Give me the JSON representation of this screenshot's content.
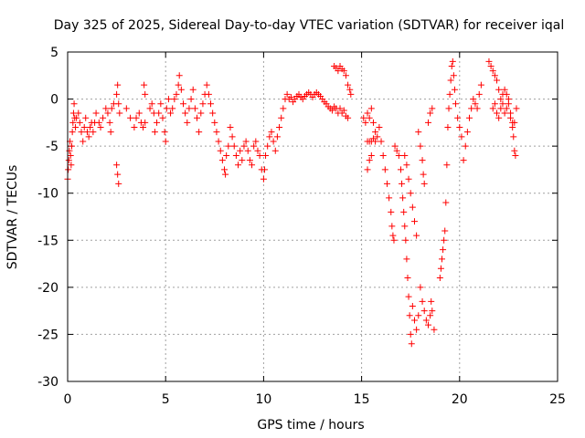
{
  "chart_data": {
    "type": "scatter",
    "title": "Day 325 of 2025, Sidereal Day-to-day VTEC variation (SDTVAR) for receiver iqal",
    "xlabel": "GPS time / hours",
    "ylabel": "SDTVAR / TECUs",
    "xlim": [
      0,
      25
    ],
    "ylim": [
      -30,
      5
    ],
    "xticks": [
      "0",
      "5",
      "10",
      "15",
      "20",
      "25"
    ],
    "yticks": [
      "5",
      "0",
      "-5",
      "-10",
      "-15",
      "-20",
      "-25",
      "-30"
    ],
    "grid": true,
    "marker": "+",
    "color": "#ff0000",
    "series": [
      {
        "name": "SDTVAR",
        "points": [
          [
            0.0,
            -8.5
          ],
          [
            0.03,
            -7.5
          ],
          [
            0.06,
            -6.5
          ],
          [
            0.09,
            -5.5
          ],
          [
            0.12,
            -4.5
          ],
          [
            0.15,
            -6.0
          ],
          [
            0.18,
            -7.0
          ],
          [
            0.21,
            -5.0
          ],
          [
            0.24,
            -3.5
          ],
          [
            0.27,
            -2.5
          ],
          [
            0.3,
            -1.5
          ],
          [
            0.33,
            -0.5
          ],
          [
            0.36,
            -2.0
          ],
          [
            0.4,
            -3.0
          ],
          [
            0.45,
            -2.0
          ],
          [
            0.55,
            -1.5
          ],
          [
            0.62,
            -2.5
          ],
          [
            0.7,
            -3.5
          ],
          [
            0.78,
            -4.5
          ],
          [
            0.85,
            -3.0
          ],
          [
            0.92,
            -2.0
          ],
          [
            1.0,
            -3.5
          ],
          [
            1.08,
            -4.0
          ],
          [
            1.15,
            -3.0
          ],
          [
            1.22,
            -2.5
          ],
          [
            1.3,
            -3.5
          ],
          [
            1.38,
            -2.5
          ],
          [
            1.45,
            -1.5
          ],
          [
            1.6,
            -2.5
          ],
          [
            1.68,
            -3.0
          ],
          [
            1.8,
            -2.0
          ],
          [
            1.95,
            -1.0
          ],
          [
            2.05,
            -1.5
          ],
          [
            2.15,
            -2.5
          ],
          [
            2.2,
            -3.5
          ],
          [
            2.25,
            -1.0
          ],
          [
            2.35,
            -0.5
          ],
          [
            2.5,
            0.5
          ],
          [
            2.55,
            1.5
          ],
          [
            2.6,
            -0.5
          ],
          [
            2.65,
            -1.5
          ],
          [
            2.5,
            -7.0
          ],
          [
            2.55,
            -8.0
          ],
          [
            2.6,
            -9.0
          ],
          [
            3.0,
            -1.0
          ],
          [
            3.2,
            -2.0
          ],
          [
            3.4,
            -3.0
          ],
          [
            3.5,
            -2.0
          ],
          [
            3.65,
            -1.5
          ],
          [
            3.75,
            -2.5
          ],
          [
            3.85,
            -3.0
          ],
          [
            3.95,
            -2.5
          ],
          [
            3.9,
            1.5
          ],
          [
            3.95,
            0.5
          ],
          [
            4.2,
            -1.0
          ],
          [
            4.3,
            -0.5
          ],
          [
            4.4,
            -1.5
          ],
          [
            4.45,
            -3.5
          ],
          [
            4.55,
            -2.5
          ],
          [
            4.65,
            -1.5
          ],
          [
            4.75,
            -0.5
          ],
          [
            4.85,
            -2.0
          ],
          [
            4.95,
            -3.5
          ],
          [
            5.0,
            -4.5
          ],
          [
            5.05,
            -1.0
          ],
          [
            5.15,
            0.0
          ],
          [
            5.25,
            -1.5
          ],
          [
            5.35,
            -1.0
          ],
          [
            5.45,
            0.0
          ],
          [
            5.55,
            0.5
          ],
          [
            5.65,
            1.5
          ],
          [
            5.7,
            2.5
          ],
          [
            5.8,
            1.0
          ],
          [
            5.9,
            -0.5
          ],
          [
            6.0,
            -1.5
          ],
          [
            6.1,
            -2.5
          ],
          [
            6.2,
            -1.0
          ],
          [
            6.3,
            0.0
          ],
          [
            6.4,
            1.0
          ],
          [
            6.5,
            -1.0
          ],
          [
            6.6,
            -2.0
          ],
          [
            6.7,
            -3.5
          ],
          [
            6.8,
            -1.5
          ],
          [
            6.9,
            -0.5
          ],
          [
            7.0,
            0.5
          ],
          [
            7.1,
            1.5
          ],
          [
            7.2,
            0.5
          ],
          [
            7.3,
            -0.5
          ],
          [
            7.4,
            -1.5
          ],
          [
            7.5,
            -2.5
          ],
          [
            7.6,
            -3.5
          ],
          [
            7.7,
            -4.5
          ],
          [
            7.8,
            -5.5
          ],
          [
            7.9,
            -6.5
          ],
          [
            8.0,
            -7.5
          ],
          [
            8.05,
            -8.0
          ],
          [
            8.1,
            -6.0
          ],
          [
            8.2,
            -5.0
          ],
          [
            8.3,
            -3.0
          ],
          [
            8.4,
            -4.0
          ],
          [
            8.5,
            -5.0
          ],
          [
            8.6,
            -6.0
          ],
          [
            8.7,
            -7.0
          ],
          [
            8.8,
            -5.5
          ],
          [
            8.9,
            -6.5
          ],
          [
            9.0,
            -5.0
          ],
          [
            9.1,
            -4.5
          ],
          [
            9.2,
            -5.5
          ],
          [
            9.3,
            -6.5
          ],
          [
            9.4,
            -7.0
          ],
          [
            9.5,
            -5.0
          ],
          [
            9.6,
            -4.5
          ],
          [
            9.7,
            -5.5
          ],
          [
            9.8,
            -6.0
          ],
          [
            9.9,
            -7.5
          ],
          [
            10.0,
            -8.5
          ],
          [
            10.05,
            -7.5
          ],
          [
            10.1,
            -6.0
          ],
          [
            10.2,
            -5.0
          ],
          [
            10.3,
            -4.0
          ],
          [
            10.4,
            -3.5
          ],
          [
            10.5,
            -4.5
          ],
          [
            10.6,
            -5.5
          ],
          [
            10.7,
            -4.0
          ],
          [
            10.8,
            -3.0
          ],
          [
            10.9,
            -2.0
          ],
          [
            11.0,
            -1.0
          ],
          [
            11.1,
            0.0
          ],
          [
            11.2,
            0.5
          ],
          [
            11.3,
            0.0
          ],
          [
            11.4,
            0.2
          ],
          [
            11.5,
            -0.3
          ],
          [
            11.6,
            0.0
          ],
          [
            11.7,
            0.3
          ],
          [
            11.8,
            0.5
          ],
          [
            11.9,
            0.2
          ],
          [
            12.0,
            0.0
          ],
          [
            12.1,
            0.3
          ],
          [
            12.2,
            0.5
          ],
          [
            12.3,
            0.7
          ],
          [
            12.4,
            0.5
          ],
          [
            12.5,
            0.2
          ],
          [
            12.6,
            0.5
          ],
          [
            12.7,
            0.7
          ],
          [
            12.8,
            0.5
          ],
          [
            12.9,
            0.3
          ],
          [
            13.0,
            0.0
          ],
          [
            13.1,
            -0.3
          ],
          [
            13.2,
            -0.5
          ],
          [
            13.3,
            -0.8
          ],
          [
            13.4,
            -1.0
          ],
          [
            13.5,
            -1.2
          ],
          [
            13.6,
            -0.8
          ],
          [
            13.7,
            -1.0
          ],
          [
            13.8,
            -1.5
          ],
          [
            13.9,
            -1.0
          ],
          [
            14.0,
            -1.5
          ],
          [
            14.1,
            -1.2
          ],
          [
            14.2,
            -1.8
          ],
          [
            14.3,
            -2.0
          ],
          [
            13.6,
            3.5
          ],
          [
            13.7,
            3.3
          ],
          [
            13.8,
            3.0
          ],
          [
            13.9,
            3.5
          ],
          [
            14.0,
            3.2
          ],
          [
            14.1,
            3.0
          ],
          [
            14.2,
            2.5
          ],
          [
            14.3,
            1.5
          ],
          [
            14.4,
            1.0
          ],
          [
            14.45,
            0.5
          ],
          [
            15.1,
            -2.0
          ],
          [
            15.2,
            -2.5
          ],
          [
            15.3,
            -1.5
          ],
          [
            15.4,
            -2.0
          ],
          [
            15.5,
            -1.0
          ],
          [
            15.6,
            -2.5
          ],
          [
            15.7,
            -3.5
          ],
          [
            15.8,
            -4.0
          ],
          [
            15.9,
            -3.0
          ],
          [
            15.3,
            -4.5
          ],
          [
            15.4,
            -4.5
          ],
          [
            15.5,
            -4.5
          ],
          [
            15.6,
            -4.2
          ],
          [
            15.7,
            -4.5
          ],
          [
            15.3,
            -7.5
          ],
          [
            15.4,
            -6.5
          ],
          [
            15.5,
            -6.0
          ],
          [
            16.0,
            -4.5
          ],
          [
            16.1,
            -6.0
          ],
          [
            16.2,
            -7.5
          ],
          [
            16.3,
            -9.0
          ],
          [
            16.4,
            -10.5
          ],
          [
            16.5,
            -12.0
          ],
          [
            16.55,
            -13.5
          ],
          [
            16.6,
            -14.5
          ],
          [
            16.65,
            -15.0
          ],
          [
            16.7,
            -5.0
          ],
          [
            16.8,
            -5.5
          ],
          [
            16.9,
            -6.0
          ],
          [
            17.0,
            -7.5
          ],
          [
            17.05,
            -9.0
          ],
          [
            17.1,
            -10.5
          ],
          [
            17.15,
            -12.0
          ],
          [
            17.2,
            -13.5
          ],
          [
            17.25,
            -15.0
          ],
          [
            17.3,
            -17.0
          ],
          [
            17.35,
            -19.0
          ],
          [
            17.4,
            -21.0
          ],
          [
            17.45,
            -23.0
          ],
          [
            17.5,
            -25.0
          ],
          [
            17.55,
            -26.0
          ],
          [
            17.2,
            -6.0
          ],
          [
            17.3,
            -7.0
          ],
          [
            17.4,
            -8.5
          ],
          [
            17.5,
            -10.0
          ],
          [
            17.6,
            -11.5
          ],
          [
            17.7,
            -13.0
          ],
          [
            17.8,
            -14.5
          ],
          [
            17.6,
            -22.0
          ],
          [
            17.7,
            -23.5
          ],
          [
            17.8,
            -24.5
          ],
          [
            17.9,
            -23.0
          ],
          [
            17.9,
            -3.5
          ],
          [
            18.0,
            -5.0
          ],
          [
            18.1,
            -6.5
          ],
          [
            18.15,
            -8.0
          ],
          [
            18.2,
            -9.0
          ],
          [
            18.0,
            -20.0
          ],
          [
            18.1,
            -21.5
          ],
          [
            18.2,
            -22.5
          ],
          [
            18.3,
            -23.5
          ],
          [
            18.4,
            -24.0
          ],
          [
            18.5,
            -23.0
          ],
          [
            18.55,
            -21.5
          ],
          [
            18.6,
            -22.5
          ],
          [
            18.7,
            -24.5
          ],
          [
            18.5,
            -1.5
          ],
          [
            18.6,
            -1.0
          ],
          [
            18.4,
            -2.5
          ],
          [
            19.0,
            -19.0
          ],
          [
            19.05,
            -18.0
          ],
          [
            19.1,
            -17.0
          ],
          [
            19.15,
            -16.0
          ],
          [
            19.2,
            -15.0
          ],
          [
            19.25,
            -14.0
          ],
          [
            19.3,
            -11.0
          ],
          [
            19.35,
            -7.0
          ],
          [
            19.4,
            -3.0
          ],
          [
            19.45,
            -1.0
          ],
          [
            19.5,
            0.5
          ],
          [
            19.55,
            2.0
          ],
          [
            19.6,
            3.5
          ],
          [
            19.65,
            4.0
          ],
          [
            19.7,
            2.5
          ],
          [
            19.75,
            1.0
          ],
          [
            19.8,
            -0.5
          ],
          [
            19.9,
            -2.0
          ],
          [
            20.0,
            -3.0
          ],
          [
            20.1,
            -4.0
          ],
          [
            20.2,
            -6.5
          ],
          [
            20.3,
            -5.0
          ],
          [
            20.4,
            -3.5
          ],
          [
            20.5,
            -2.0
          ],
          [
            20.6,
            -1.0
          ],
          [
            20.7,
            0.0
          ],
          [
            20.8,
            -0.5
          ],
          [
            20.9,
            -1.0
          ],
          [
            21.0,
            0.5
          ],
          [
            21.1,
            1.5
          ],
          [
            21.5,
            4.0
          ],
          [
            21.6,
            3.5
          ],
          [
            21.7,
            3.0
          ],
          [
            21.8,
            2.5
          ],
          [
            21.9,
            2.0
          ],
          [
            22.0,
            1.0
          ],
          [
            22.1,
            0.0
          ],
          [
            22.2,
            -0.5
          ],
          [
            22.3,
            -1.5
          ],
          [
            22.4,
            -1.0
          ],
          [
            22.5,
            0.0
          ],
          [
            22.6,
            -1.5
          ],
          [
            22.7,
            -2.5
          ],
          [
            22.75,
            -4.0
          ],
          [
            22.8,
            -5.5
          ],
          [
            22.85,
            -6.0
          ],
          [
            21.7,
            -1.0
          ],
          [
            21.8,
            -0.5
          ],
          [
            21.9,
            -1.5
          ],
          [
            22.0,
            -2.0
          ],
          [
            22.1,
            -1.0
          ],
          [
            22.2,
            0.5
          ],
          [
            22.3,
            1.0
          ],
          [
            22.4,
            0.5
          ],
          [
            22.5,
            -0.5
          ],
          [
            22.6,
            -2.0
          ],
          [
            22.7,
            -3.0
          ],
          [
            22.8,
            -2.5
          ],
          [
            22.9,
            -1.0
          ]
        ]
      }
    ]
  }
}
